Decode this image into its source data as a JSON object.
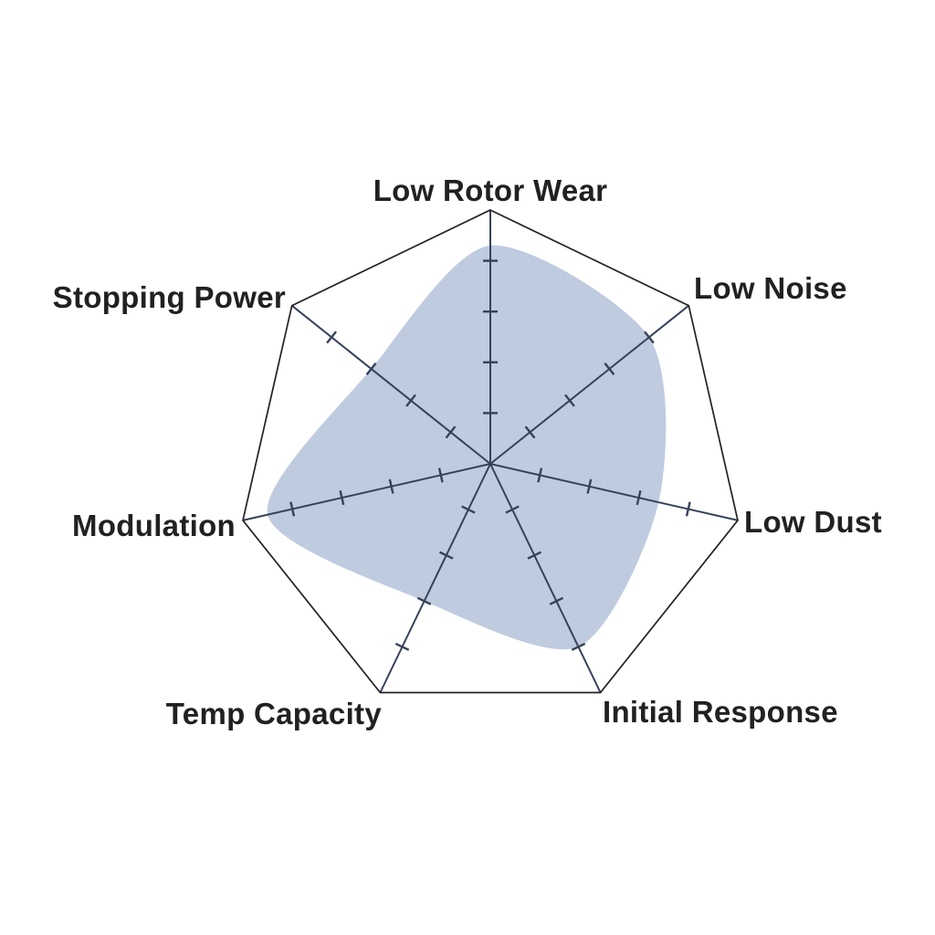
{
  "chart_data": {
    "type": "radar",
    "categories": [
      "Low Rotor Wear",
      "Low Noise",
      "Low Dust",
      "Initial Response",
      "Temp Capacity",
      "Modulation",
      "Stopping Power"
    ],
    "values": [
      4.3,
      4.0,
      3.4,
      4.0,
      3.0,
      4.5,
      3.0
    ],
    "scale": {
      "min": 0,
      "max": 5,
      "tick_interval": 1,
      "ticks_shown_per_axis": [
        1,
        2,
        3,
        4
      ]
    },
    "title": "",
    "legend_position": "none",
    "grid": "outer heptagon outline with tick marks on each spoke, no concentric rings",
    "colors": {
      "fill": "#bfcbdf",
      "axis_line": "#36425a",
      "outline": "#222222",
      "label_text": "#232021",
      "background": "#ffffff"
    }
  }
}
